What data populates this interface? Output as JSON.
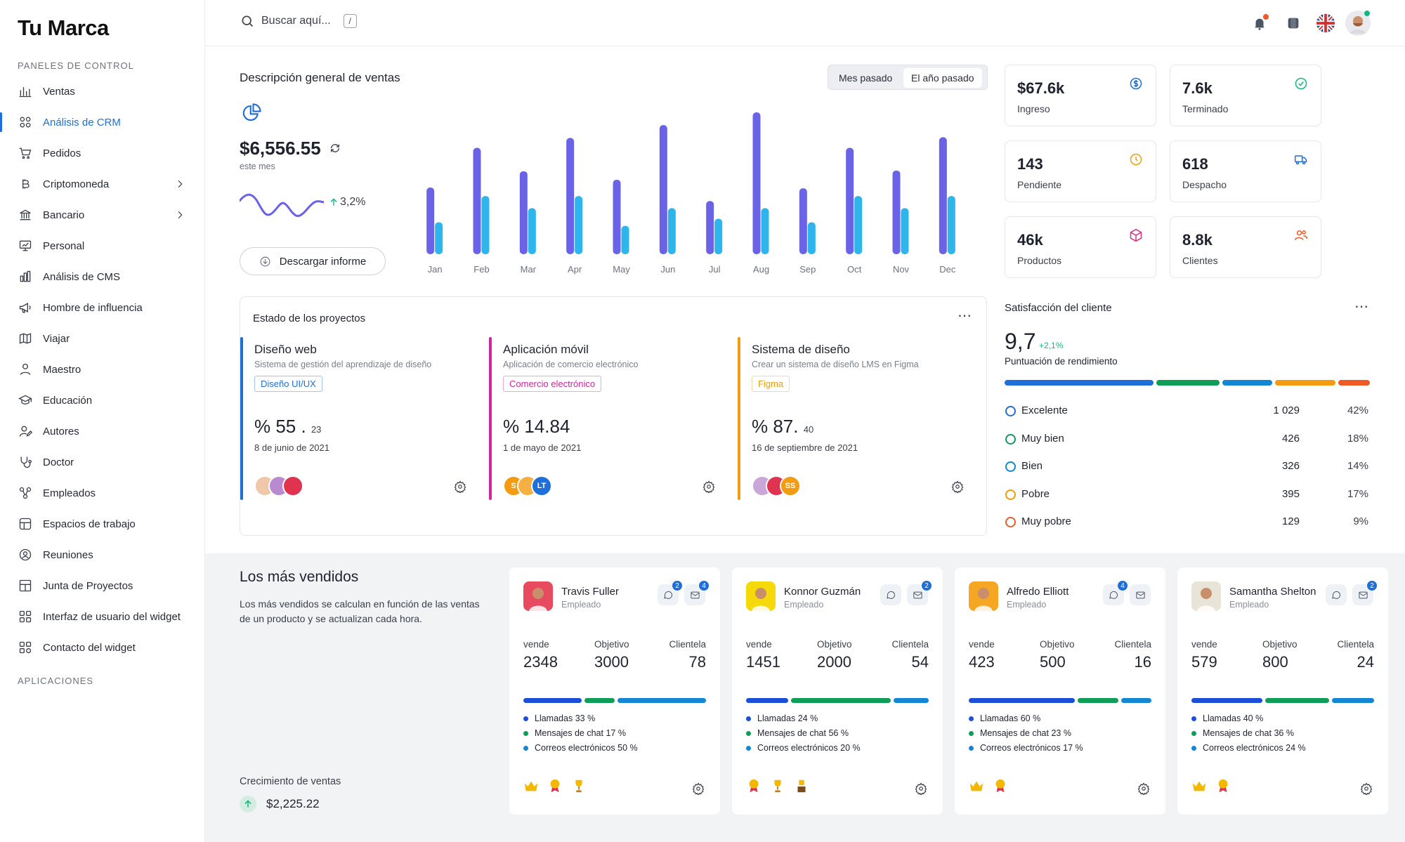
{
  "brand": "Tu Marca",
  "sidebar": {
    "section1": "PANELES DE CONTROL",
    "section2": "APLICACIONES",
    "items": [
      {
        "label": "Ventas",
        "icon": "bar-chart-icon"
      },
      {
        "label": "Análisis de CRM",
        "icon": "grid-icon",
        "active": true
      },
      {
        "label": "Pedidos",
        "icon": "cart-icon"
      },
      {
        "label": "Criptomoneda",
        "icon": "bitcoin-icon",
        "expandable": true
      },
      {
        "label": "Bancario",
        "icon": "bank-icon",
        "expandable": true
      },
      {
        "label": "Personal",
        "icon": "presentation-icon"
      },
      {
        "label": "Análisis de CMS",
        "icon": "column-chart-icon"
      },
      {
        "label": "Hombre de influencia",
        "icon": "megaphone-icon"
      },
      {
        "label": "Viajar",
        "icon": "map-icon"
      },
      {
        "label": "Maestro",
        "icon": "teacher-icon"
      },
      {
        "label": "Educación",
        "icon": "graduation-cap-icon"
      },
      {
        "label": "Autores",
        "icon": "user-edit-icon"
      },
      {
        "label": "Doctor",
        "icon": "stethoscope-icon"
      },
      {
        "label": "Empleados",
        "icon": "people-network-icon"
      },
      {
        "label": "Espacios de trabajo",
        "icon": "workspace-icon"
      },
      {
        "label": "Reuniones",
        "icon": "meeting-icon"
      },
      {
        "label": "Junta de Proyectos",
        "icon": "board-icon"
      },
      {
        "label": "Interfaz de usuario del widget",
        "icon": "widget-grid-icon"
      },
      {
        "label": "Contacto del widget",
        "icon": "widget-contact-icon"
      }
    ]
  },
  "header": {
    "search_placeholder": "Buscar aquí...",
    "shortcut": "/",
    "colors": {
      "notif_dot": "#f05a28",
      "online_dot": "#10b981"
    }
  },
  "sales": {
    "title": "Descripción general de ventas",
    "segment": [
      "Mes pasado",
      "El año pasado"
    ],
    "segment_active": 1,
    "amount": "$6,556.55",
    "period": "este mes",
    "change": "3,2%",
    "download": "Descargar informe"
  },
  "chart_data": {
    "type": "bar",
    "categories": [
      "Jan",
      "Feb",
      "Mar",
      "Apr",
      "May",
      "Jun",
      "Jul",
      "Aug",
      "Sep",
      "Oct",
      "Nov",
      "Dec"
    ],
    "series": [
      {
        "values": [
          94,
          150,
          117,
          164,
          105,
          182,
          75,
          200,
          93,
          150,
          118,
          165
        ],
        "color": "#6a63e8"
      },
      {
        "values": [
          45,
          82,
          65,
          82,
          40,
          65,
          50,
          65,
          45,
          82,
          65,
          82
        ],
        "color": "#2eb5ec"
      }
    ],
    "ylim": [
      0,
      200
    ],
    "grid": false,
    "legend": "none"
  },
  "stats": [
    {
      "value": "$67.6k",
      "label": "Ingreso",
      "icon": "dollar-circle-icon",
      "color": "#1e6fd9"
    },
    {
      "value": "7.6k",
      "label": "Terminado",
      "icon": "check-circle-icon",
      "color": "#10b981"
    },
    {
      "value": "143",
      "label": "Pendiente",
      "icon": "clock-icon",
      "color": "#f59e0b"
    },
    {
      "value": "618",
      "label": "Despacho",
      "icon": "truck-icon",
      "color": "#1e6fd9"
    },
    {
      "value": "46k",
      "label": "Productos",
      "icon": "box-icon",
      "color": "#d63384"
    },
    {
      "value": "8.8k",
      "label": "Clientes",
      "icon": "users-icon",
      "color": "#f05a28"
    }
  ],
  "projects": {
    "title": "Estado de los proyectos",
    "items": [
      {
        "name": "Diseño web",
        "desc": "Sistema de gestión del aprendizaje de diseño",
        "tag": "Diseño UI/UX",
        "color": "#1e6fd9",
        "value_main": "% 55 .",
        "value_small": "23",
        "date": "8 de junio de 2021",
        "avatars": [
          "",
          "",
          ""
        ]
      },
      {
        "name": "Aplicación móvil",
        "desc": "Aplicación de comercio electrónico",
        "tag": "Comercio electrónico",
        "color": "#d6249f",
        "value_main": "% 14.84",
        "value_small": "",
        "date": "1 de mayo de 2021",
        "avatars": [
          "S",
          "",
          "LT"
        ]
      },
      {
        "name": "Sistema de diseño",
        "desc": "Crear un sistema de diseño LMS en Figma",
        "tag": "Figma",
        "color": "#f39c12",
        "value_main": "% 87.",
        "value_small": "40",
        "date": "16 de septiembre de 2021",
        "avatars": [
          "",
          "",
          "SS"
        ]
      }
    ]
  },
  "satisfaction": {
    "title": "Satisfacción del cliente",
    "score": "9,7",
    "delta": "+2,1%",
    "subtitle": "Puntuación de rendimiento",
    "rows": [
      {
        "label": "Excelente",
        "count": "1 029",
        "pct": "42%",
        "color": "#1e6fd9",
        "share": 42
      },
      {
        "label": "Muy bien",
        "count": "426",
        "pct": "18%",
        "color": "#0f9d58",
        "share": 18
      },
      {
        "label": "Bien",
        "count": "326",
        "pct": "14%",
        "color": "#1487d4",
        "share": 14
      },
      {
        "label": "Pobre",
        "count": "395",
        "pct": "17%",
        "color": "#f39c12",
        "share": 17
      },
      {
        "label": "Muy pobre",
        "count": "129",
        "pct": "9%",
        "color": "#ef5b25",
        "share": 9
      }
    ]
  },
  "bestsellers": {
    "title": "Los más vendidos",
    "desc": "Los más vendidos se calculan en función de las ventas de un producto y se actualizan cada hora.",
    "growth_label": "Crecimiento de ventas",
    "growth_value": "$2,225.22",
    "metric_labels": [
      "vende",
      "Objetivo",
      "Clientela"
    ],
    "list_labels": [
      "Llamadas",
      "Mensajes de chat",
      "Correos electrónicos"
    ],
    "sellers": [
      {
        "name": "Travis Fuller",
        "role": "Empleado",
        "sales": "2348",
        "target": "3000",
        "clients": "78",
        "calls": 33,
        "chats": 17,
        "emails": 50,
        "msg_badge": "2",
        "mail_badge": "4",
        "face": "#e84a5f"
      },
      {
        "name": "Konnor Guzmán",
        "role": "Empleado",
        "sales": "1451",
        "target": "2000",
        "clients": "54",
        "calls": 24,
        "chats": 56,
        "emails": 20,
        "msg_badge": "",
        "mail_badge": "2",
        "face": "#f5d90a"
      },
      {
        "name": "Alfredo Elliott",
        "role": "Empleado",
        "sales": "423",
        "target": "500",
        "clients": "16",
        "calls": 60,
        "chats": 23,
        "emails": 17,
        "msg_badge": "4",
        "mail_badge": "",
        "face": "#f5a623"
      },
      {
        "name": "Samantha Shelton",
        "role": "Empleado",
        "sales": "579",
        "target": "800",
        "clients": "24",
        "calls": 40,
        "chats": 36,
        "emails": 24,
        "msg_badge": "",
        "mail_badge": "2",
        "face": "#e9e4d8"
      }
    ]
  }
}
